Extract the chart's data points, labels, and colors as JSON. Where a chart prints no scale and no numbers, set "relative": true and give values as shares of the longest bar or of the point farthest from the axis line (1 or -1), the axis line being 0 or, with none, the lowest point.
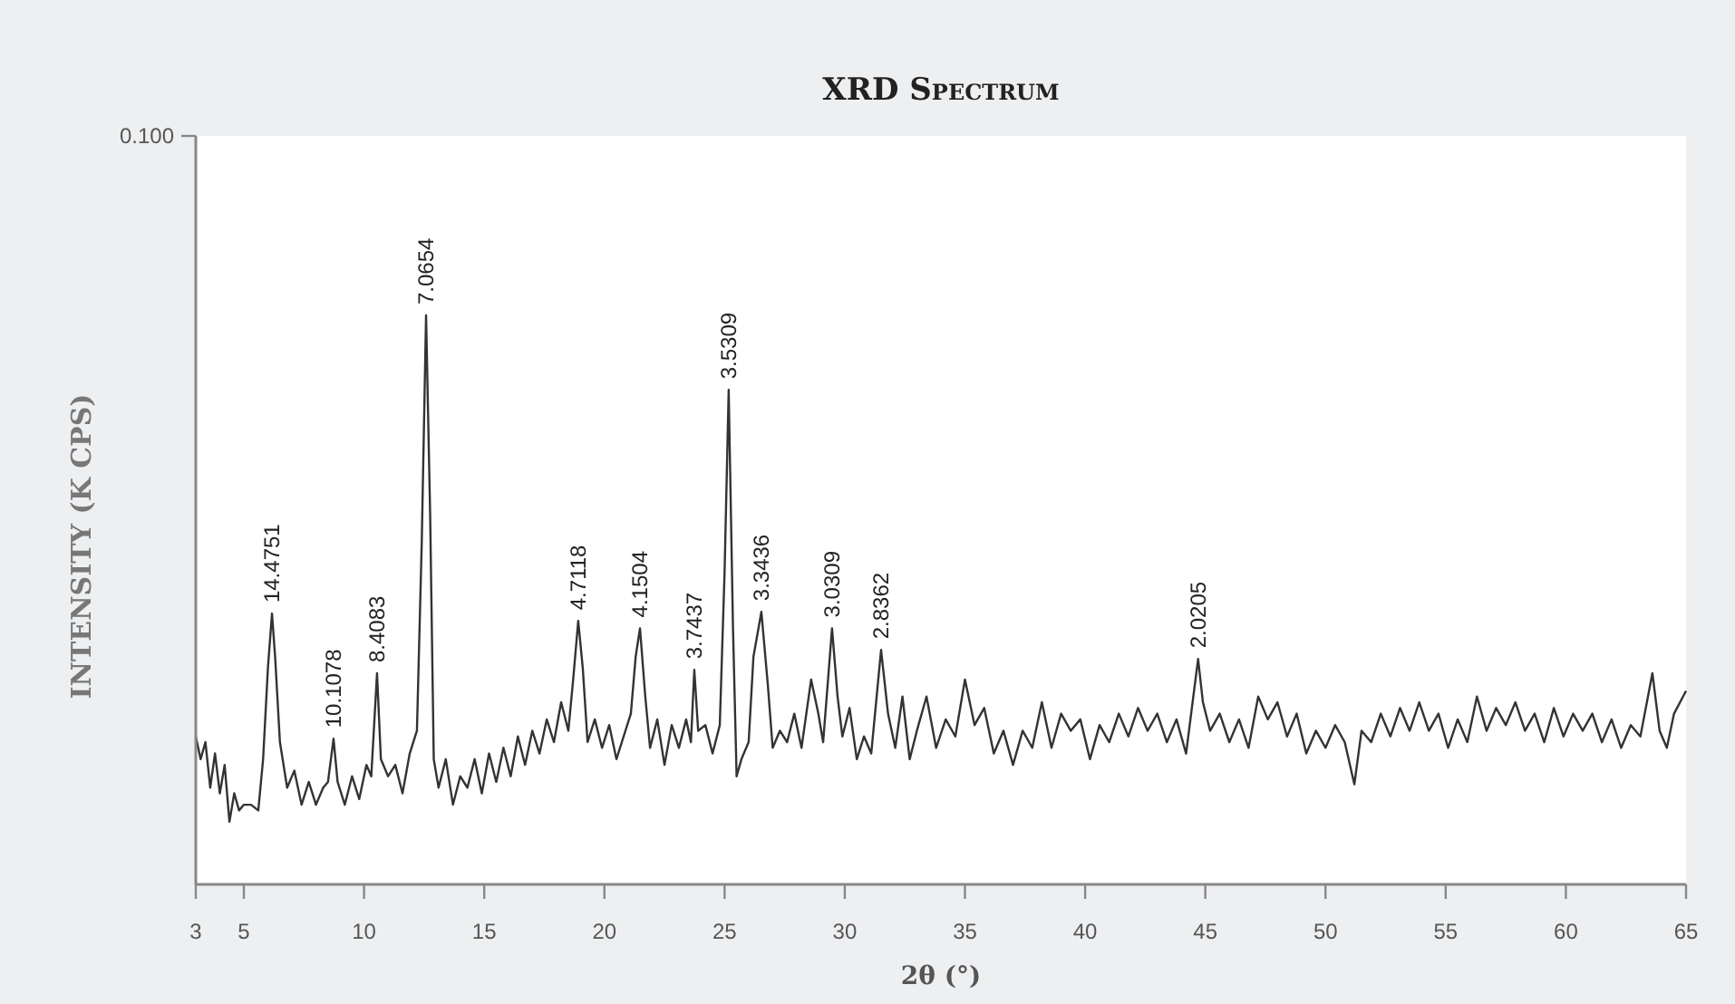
{
  "chart_data": {
    "type": "line",
    "title": "XRD Spectrum",
    "xlabel": "2θ (°)",
    "ylabel": "INTENSITY (K CPS)",
    "relative": true,
    "xlim": [
      3,
      65
    ],
    "xticks": [
      3,
      5,
      10,
      15,
      20,
      25,
      30,
      35,
      40,
      45,
      50,
      55,
      60,
      65
    ],
    "grid": false,
    "marker": "none",
    "line_style": "solid",
    "x": [
      3.0,
      3.2,
      3.4,
      3.6,
      3.8,
      4.0,
      4.2,
      4.4,
      4.6,
      4.8,
      5.0,
      5.3,
      5.6,
      5.8,
      6.0,
      6.17,
      6.3,
      6.5,
      6.8,
      7.1,
      7.4,
      7.7,
      8.0,
      8.3,
      8.5,
      8.73,
      8.9,
      9.2,
      9.5,
      9.8,
      10.1,
      10.3,
      10.54,
      10.7,
      11.0,
      11.3,
      11.6,
      11.9,
      12.2,
      12.4,
      12.58,
      12.75,
      12.9,
      13.1,
      13.4,
      13.7,
      14.0,
      14.3,
      14.6,
      14.9,
      15.2,
      15.5,
      15.8,
      16.1,
      16.4,
      16.7,
      17.0,
      17.3,
      17.6,
      17.9,
      18.2,
      18.5,
      18.7,
      18.91,
      19.1,
      19.3,
      19.6,
      19.9,
      20.2,
      20.5,
      20.8,
      21.1,
      21.3,
      21.48,
      21.7,
      21.9,
      22.2,
      22.5,
      22.8,
      23.1,
      23.4,
      23.6,
      23.74,
      23.9,
      24.2,
      24.5,
      24.8,
      25.0,
      25.17,
      25.35,
      25.5,
      25.7,
      26.0,
      26.2,
      26.53,
      26.8,
      27.0,
      27.3,
      27.6,
      27.9,
      28.2,
      28.6,
      28.9,
      29.1,
      29.47,
      29.7,
      29.9,
      30.2,
      30.5,
      30.8,
      31.1,
      31.51,
      31.8,
      32.1,
      32.4,
      32.7,
      33.0,
      33.4,
      33.8,
      34.2,
      34.6,
      35.0,
      35.4,
      35.8,
      36.2,
      36.6,
      37.0,
      37.4,
      37.8,
      38.2,
      38.6,
      39.0,
      39.4,
      39.8,
      40.2,
      40.6,
      41.0,
      41.4,
      41.8,
      42.2,
      42.6,
      43.0,
      43.4,
      43.8,
      44.2,
      44.5,
      44.7,
      44.9,
      45.2,
      45.6,
      46.0,
      46.4,
      46.8,
      47.2,
      47.6,
      48.0,
      48.4,
      48.8,
      49.2,
      49.6,
      50.0,
      50.4,
      50.8,
      51.2,
      51.5,
      51.9,
      52.3,
      52.7,
      53.1,
      53.5,
      53.9,
      54.3,
      54.7,
      55.1,
      55.5,
      55.9,
      56.3,
      56.7,
      57.1,
      57.5,
      57.9,
      58.3,
      58.7,
      59.1,
      59.5,
      59.9,
      60.3,
      60.7,
      61.1,
      61.5,
      61.9,
      62.3,
      62.7,
      63.1,
      63.6,
      63.9,
      64.2,
      64.5,
      65.0
    ],
    "series": [
      {
        "color": "#333333",
        "values": [
          0.26,
          0.22,
          0.25,
          0.17,
          0.23,
          0.16,
          0.21,
          0.11,
          0.16,
          0.13,
          0.14,
          0.14,
          0.13,
          0.22,
          0.38,
          0.476,
          0.4,
          0.25,
          0.17,
          0.2,
          0.14,
          0.18,
          0.14,
          0.17,
          0.18,
          0.256,
          0.18,
          0.14,
          0.19,
          0.15,
          0.21,
          0.19,
          0.371,
          0.22,
          0.19,
          0.21,
          0.16,
          0.23,
          0.27,
          0.6,
          1.0,
          0.65,
          0.22,
          0.17,
          0.22,
          0.14,
          0.19,
          0.17,
          0.22,
          0.16,
          0.23,
          0.18,
          0.24,
          0.19,
          0.26,
          0.21,
          0.27,
          0.23,
          0.29,
          0.25,
          0.32,
          0.27,
          0.36,
          0.463,
          0.38,
          0.25,
          0.29,
          0.24,
          0.28,
          0.22,
          0.26,
          0.3,
          0.4,
          0.45,
          0.33,
          0.24,
          0.29,
          0.21,
          0.28,
          0.24,
          0.29,
          0.25,
          0.377,
          0.27,
          0.28,
          0.23,
          0.28,
          0.55,
          0.869,
          0.45,
          0.19,
          0.22,
          0.25,
          0.4,
          0.479,
          0.35,
          0.24,
          0.27,
          0.25,
          0.3,
          0.24,
          0.36,
          0.3,
          0.25,
          0.45,
          0.33,
          0.26,
          0.31,
          0.22,
          0.26,
          0.23,
          0.412,
          0.3,
          0.24,
          0.33,
          0.22,
          0.27,
          0.33,
          0.24,
          0.29,
          0.26,
          0.36,
          0.28,
          0.31,
          0.23,
          0.27,
          0.21,
          0.27,
          0.24,
          0.32,
          0.24,
          0.3,
          0.27,
          0.29,
          0.22,
          0.28,
          0.25,
          0.3,
          0.26,
          0.31,
          0.27,
          0.3,
          0.25,
          0.29,
          0.23,
          0.33,
          0.396,
          0.32,
          0.27,
          0.3,
          0.25,
          0.29,
          0.24,
          0.33,
          0.29,
          0.32,
          0.26,
          0.3,
          0.23,
          0.27,
          0.24,
          0.28,
          0.25,
          0.176,
          0.27,
          0.25,
          0.3,
          0.26,
          0.31,
          0.27,
          0.32,
          0.27,
          0.3,
          0.24,
          0.29,
          0.25,
          0.33,
          0.27,
          0.31,
          0.28,
          0.32,
          0.27,
          0.3,
          0.25,
          0.31,
          0.26,
          0.3,
          0.27,
          0.3,
          0.25,
          0.29,
          0.24,
          0.28,
          0.26,
          0.371,
          0.27,
          0.24,
          0.3,
          0.34
        ]
      }
    ],
    "annotations": [
      "0.100",
      {
        "text": "14.4751",
        "x": 6.17,
        "y": 0.476
      },
      {
        "text": "10.1078",
        "x": 8.73,
        "y": 0.256
      },
      {
        "text": "8.4083",
        "x": 10.54,
        "y": 0.371
      },
      {
        "text": "7.0654",
        "x": 12.58,
        "y": 1.0
      },
      {
        "text": "4.7118",
        "x": 18.91,
        "y": 0.463
      },
      {
        "text": "4.1504",
        "x": 21.48,
        "y": 0.45
      },
      {
        "text": "3.7437",
        "x": 23.74,
        "y": 0.377
      },
      {
        "text": "3.5309",
        "x": 25.17,
        "y": 0.869
      },
      {
        "text": "3.3436",
        "x": 26.53,
        "y": 0.479
      },
      {
        "text": "3.0309",
        "x": 29.47,
        "y": 0.45
      },
      {
        "text": "2.8362",
        "x": 31.51,
        "y": 0.412
      },
      {
        "text": "2.0205",
        "x": 44.7,
        "y": 0.396
      }
    ]
  }
}
